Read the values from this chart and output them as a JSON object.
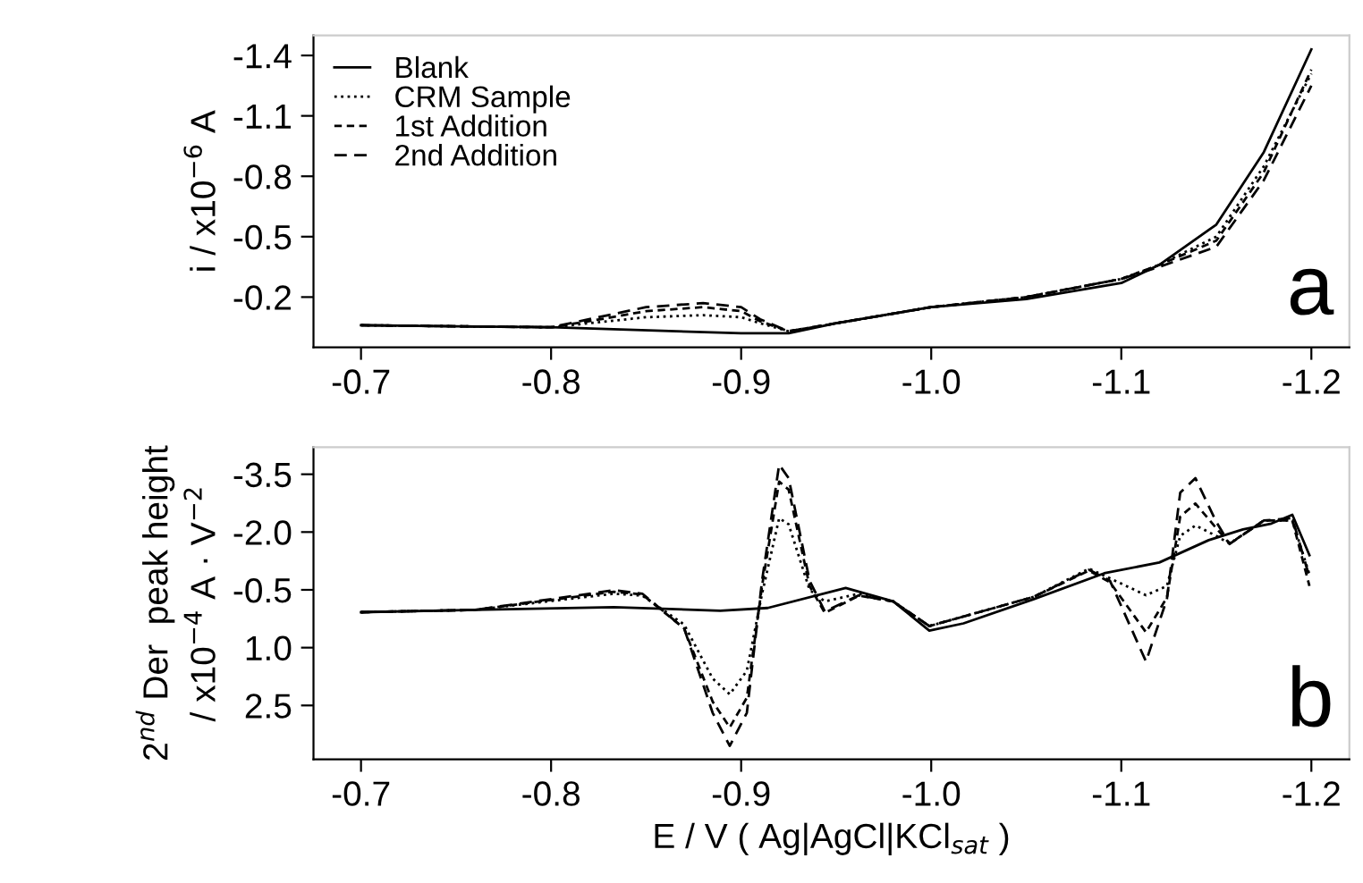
{
  "chart_data": [
    {
      "type": "line",
      "ylabel": "i / x10$^{−6}$ A",
      "annotations": [
        "a"
      ],
      "xlim": [
        -0.675,
        -1.22
      ],
      "xticks": [
        -0.7,
        -0.8,
        -0.9,
        {
          "value": -1.0,
          "label": "-1.0"
        },
        -1.1,
        -1.2
      ],
      "ylim": [
        0.05,
        -1.5
      ],
      "yticks": [
        -1.4,
        -1.1,
        -0.8,
        -0.5,
        -0.2
      ],
      "grid": false,
      "legend": "top left",
      "series": [
        {
          "name": "Blank",
          "color": "#000000",
          "line_style": "solid",
          "x": [
            -0.7,
            -0.8,
            -0.9,
            -0.925,
            -0.95,
            -1.0,
            -1.05,
            -1.1,
            -1.12,
            -1.15,
            -1.175,
            -1.2
          ],
          "values": [
            -0.06,
            -0.05,
            -0.02,
            -0.02,
            -0.07,
            -0.15,
            -0.19,
            -0.27,
            -0.36,
            -0.56,
            -0.92,
            -1.43
          ]
        },
        {
          "name": "CRM Sample",
          "color": "#000000",
          "line_style": "dotted",
          "x": [
            -0.7,
            -0.8,
            -0.82,
            -0.85,
            -0.88,
            -0.9,
            -0.91,
            -0.925,
            -0.95,
            -1.0,
            -1.05,
            -1.1,
            -1.12,
            -1.15,
            -1.175,
            -1.2
          ],
          "values": [
            -0.06,
            -0.05,
            -0.07,
            -0.1,
            -0.11,
            -0.1,
            -0.07,
            -0.03,
            -0.07,
            -0.15,
            -0.2,
            -0.29,
            -0.36,
            -0.5,
            -0.85,
            -1.31
          ]
        },
        {
          "name": "1st Addition",
          "color": "#000000",
          "line_style": "dashed",
          "x": [
            -0.7,
            -0.8,
            -0.82,
            -0.85,
            -0.88,
            -0.9,
            -0.91,
            -0.925,
            -0.95,
            -1.0,
            -1.05,
            -1.1,
            -1.12,
            -1.15,
            -1.175,
            -1.2
          ],
          "values": [
            -0.06,
            -0.05,
            -0.08,
            -0.13,
            -0.15,
            -0.13,
            -0.08,
            -0.03,
            -0.07,
            -0.15,
            -0.2,
            -0.29,
            -0.36,
            -0.48,
            -0.82,
            -1.33
          ]
        },
        {
          "name": "2nd Addition",
          "color": "#000000",
          "line_style": "dashed",
          "x": [
            -0.7,
            -0.8,
            -0.82,
            -0.85,
            -0.88,
            -0.9,
            -0.91,
            -0.925,
            -0.95,
            -1.0,
            -1.05,
            -1.1,
            -1.12,
            -1.15,
            -1.175,
            -1.2
          ],
          "values": [
            -0.06,
            -0.05,
            -0.09,
            -0.15,
            -0.17,
            -0.15,
            -0.09,
            -0.03,
            -0.07,
            -0.15,
            -0.2,
            -0.29,
            -0.35,
            -0.45,
            -0.78,
            -1.25
          ]
        }
      ]
    },
    {
      "type": "line",
      "xlabel": "E / V ( Ag|AgCl|KCl$_{sat}$ )",
      "ylabel": "2$^{nd}$ Der  peak height\n/ x10$^{−4}$ A · V$^{−2}$",
      "annotations": [
        "b"
      ],
      "xlim": [
        -0.675,
        -1.22
      ],
      "xticks": [
        -0.7,
        -0.8,
        -0.9,
        {
          "value": -1.0,
          "label": "-1.0"
        },
        -1.1,
        -1.2
      ],
      "ylim": [
        3.9,
        -4.2
      ],
      "yticks": [
        -3.5,
        {
          "value": -2.0,
          "label": "-2.0"
        },
        -0.5,
        {
          "value": 1.0,
          "label": "1.0"
        },
        2.5
      ],
      "grid": false,
      "series": [
        {
          "color": "#000000",
          "line_style": "solid",
          "x": [
            -0.7,
            -0.76,
            -0.833,
            -0.889,
            -0.914,
            -0.955,
            -0.98,
            -0.999,
            -1.017,
            -1.054,
            -1.091,
            -1.12,
            -1.146,
            -1.164,
            -1.179,
            -1.19,
            -1.199
          ],
          "values": [
            0.08,
            0.02,
            -0.05,
            0.04,
            -0.03,
            -0.55,
            -0.2,
            0.56,
            0.37,
            -0.26,
            -0.93,
            -1.21,
            -1.79,
            -2.07,
            -2.22,
            -2.45,
            -1.4
          ]
        },
        {
          "color": "#000000",
          "line_style": "dotted",
          "x": [
            -0.7,
            -0.76,
            -0.833,
            -0.848,
            -0.87,
            -0.885,
            -0.894,
            -0.903,
            -0.911,
            -0.92,
            -0.925,
            -0.936,
            -0.944,
            -0.962,
            -0.98,
            -0.999,
            -1.054,
            -1.083,
            -1.094,
            -1.113,
            -1.124,
            -1.131,
            -1.139,
            -1.15,
            -1.157,
            -1.175,
            -1.19,
            -1.199
          ],
          "values": [
            0.08,
            0.02,
            -0.4,
            -0.35,
            0.4,
            1.8,
            2.21,
            1.6,
            -0.4,
            -2.36,
            -2.2,
            -0.5,
            -0.2,
            -0.4,
            -0.2,
            0.44,
            -0.32,
            -1.05,
            -0.8,
            -0.36,
            -0.6,
            -1.9,
            -2.17,
            -1.9,
            -1.7,
            -2.3,
            -2.3,
            -0.9
          ]
        },
        {
          "color": "#000000",
          "line_style": "dashed",
          "x": [
            -0.7,
            -0.76,
            -0.833,
            -0.848,
            -0.87,
            -0.885,
            -0.894,
            -0.903,
            -0.911,
            -0.92,
            -0.925,
            -0.936,
            -0.944,
            -0.962,
            -0.98,
            -0.999,
            -1.054,
            -1.083,
            -1.094,
            -1.113,
            -1.124,
            -1.131,
            -1.139,
            -1.15,
            -1.157,
            -1.175,
            -1.19,
            -1.199
          ],
          "values": [
            0.08,
            0.02,
            -0.45,
            -0.38,
            0.5,
            2.4,
            3.07,
            2.3,
            -0.6,
            -3.31,
            -3.1,
            -0.6,
            0.1,
            -0.35,
            -0.2,
            0.44,
            -0.32,
            -1.0,
            -0.7,
            0.6,
            -0.3,
            -2.4,
            -2.74,
            -2.1,
            -1.7,
            -2.3,
            -2.3,
            -0.6
          ]
        },
        {
          "color": "#000000",
          "line_style": "dashed",
          "x": [
            -0.7,
            -0.76,
            -0.833,
            -0.848,
            -0.87,
            -0.885,
            -0.894,
            -0.903,
            -0.911,
            -0.92,
            -0.925,
            -0.936,
            -0.944,
            -0.962,
            -0.98,
            -0.999,
            -1.054,
            -1.083,
            -1.094,
            -1.113,
            -1.124,
            -1.131,
            -1.139,
            -1.15,
            -1.157,
            -1.175,
            -1.19,
            -1.199
          ],
          "values": [
            0.08,
            0.02,
            -0.49,
            -0.4,
            0.5,
            2.69,
            3.55,
            2.69,
            -0.74,
            -3.75,
            -3.4,
            -0.74,
            0.06,
            -0.36,
            -0.2,
            0.44,
            -0.32,
            -1.02,
            -0.74,
            1.36,
            -0.26,
            -3.02,
            -3.4,
            -2.26,
            -1.69,
            -2.3,
            -2.36,
            -0.83
          ]
        }
      ]
    }
  ]
}
